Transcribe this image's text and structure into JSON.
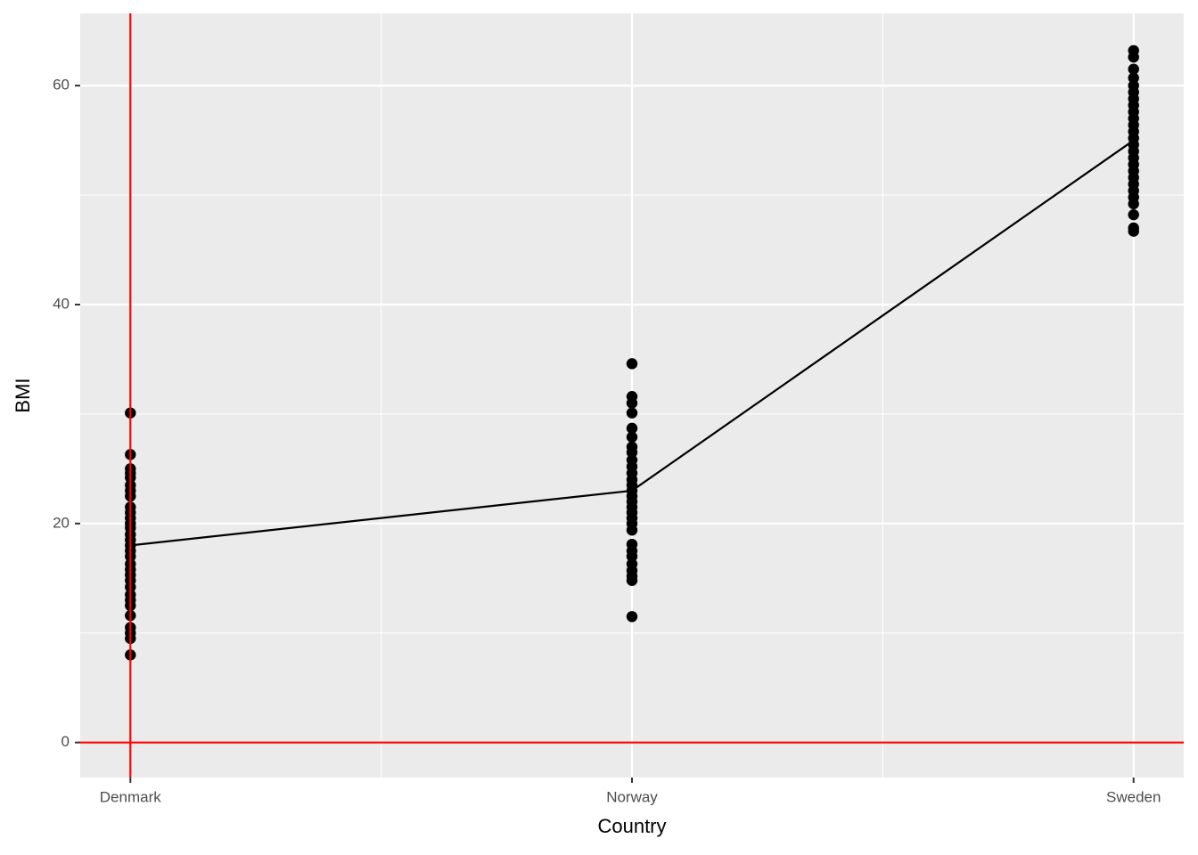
{
  "chart_data": {
    "type": "strip",
    "x_label": "Country",
    "y_label": "BMI",
    "categories": [
      "Denmark",
      "Norway",
      "Sweden"
    ],
    "points": [
      [
        30.1,
        26.3,
        25.0,
        24.6,
        24.2,
        23.5,
        23.0,
        22.5,
        21.5,
        21.0,
        20.5,
        20.0,
        19.6,
        19.0,
        18.5,
        18.0,
        17.5,
        17.0,
        16.3,
        15.8,
        15.3,
        14.8,
        14.2,
        13.5,
        13.0,
        12.5,
        11.6,
        10.5,
        10.0,
        9.5,
        8.0
      ],
      [
        34.6,
        31.6,
        31.0,
        30.1,
        28.7,
        27.9,
        27.0,
        26.5,
        25.8,
        25.2,
        24.6,
        24.0,
        23.5,
        23.0,
        22.5,
        22.0,
        21.5,
        21.0,
        20.5,
        20.0,
        19.4,
        18.1,
        17.5,
        17.0,
        16.3,
        15.7,
        15.2,
        14.8,
        11.5
      ],
      [
        63.2,
        62.6,
        61.5,
        60.7,
        60.0,
        59.4,
        58.8,
        58.2,
        57.6,
        57.0,
        56.4,
        55.8,
        55.2,
        54.6,
        54.0,
        53.4,
        52.8,
        52.2,
        51.6,
        51.0,
        50.4,
        49.8,
        49.2,
        48.2,
        47.0,
        46.7
      ]
    ],
    "point_color": "#000000",
    "line": {
      "values": [
        18.0,
        23.0,
        55.0
      ],
      "color": "#000000"
    },
    "hline": {
      "value": 0,
      "color": "#ff0000"
    },
    "vline": {
      "x": "Denmark",
      "color": "#ff0000"
    },
    "ylim": [
      -3.2,
      66.6
    ],
    "yticks": [
      0,
      20,
      40,
      60
    ],
    "minor_yticks": [
      10,
      30,
      50
    ],
    "grid": true
  }
}
